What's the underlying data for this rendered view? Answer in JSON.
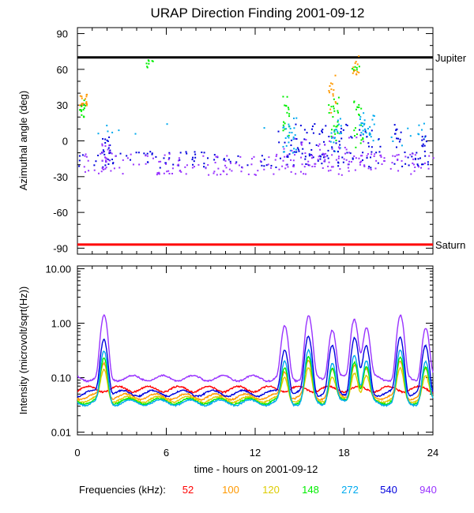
{
  "chart_data": [
    {
      "type": "scatter",
      "title": "URAP Direction Finding  2001-09-12",
      "ylabel": "Azimuthal angle (deg)",
      "xlim": [
        0,
        24
      ],
      "ylim": [
        -95,
        95
      ],
      "yticks": [
        90,
        60,
        30,
        0,
        -30,
        -60,
        -90
      ],
      "yticklabels": [
        "90",
        "60",
        "30",
        "0",
        "-30",
        "-60",
        "-90"
      ],
      "reference_lines": [
        {
          "name": "Jupiter",
          "y": 70,
          "color": "#000000"
        },
        {
          "name": "Saturn",
          "y": -87,
          "color": "#ff0000"
        }
      ],
      "series": [
        {
          "name": "100 kHz",
          "color": "#ff9900",
          "clusters": [
            {
              "x": [
                0.1,
                0.6
              ],
              "y": [
                30,
                40
              ],
              "n": 18
            },
            {
              "x": [
                16.9,
                17.4
              ],
              "y": [
                20,
                60
              ],
              "n": 14
            },
            {
              "x": [
                18.5,
                19.0
              ],
              "y": [
                55,
                72
              ],
              "n": 12
            }
          ]
        },
        {
          "name": "148 kHz",
          "color": "#00ee00",
          "clusters": [
            {
              "x": [
                0.1,
                0.5
              ],
              "y": [
                20,
                35
              ],
              "n": 14
            },
            {
              "x": [
                4.6,
                5.1
              ],
              "y": [
                62,
                70
              ],
              "n": 8
            },
            {
              "x": [
                13.8,
                14.3
              ],
              "y": [
                5,
                40
              ],
              "n": 18
            },
            {
              "x": [
                16.9,
                17.6
              ],
              "y": [
                0,
                40
              ],
              "n": 24
            },
            {
              "x": [
                18.6,
                19.3
              ],
              "y": [
                -5,
                35
              ],
              "n": 20
            },
            {
              "x": [
                18.5,
                19.0
              ],
              "y": [
                60,
                65
              ],
              "n": 6
            }
          ]
        },
        {
          "name": "272 kHz",
          "color": "#00aaee",
          "clusters": [
            {
              "x": [
                13.8,
                14.8
              ],
              "y": [
                -10,
                20
              ],
              "n": 28
            },
            {
              "x": [
                17.0,
                17.8
              ],
              "y": [
                -10,
                20
              ],
              "n": 20
            },
            {
              "x": [
                19.0,
                20.0
              ],
              "y": [
                0,
                25
              ],
              "n": 30
            },
            {
              "x": [
                20.0,
                23.5
              ],
              "y": [
                -5,
                20
              ],
              "n": 12
            },
            {
              "x": [
                1.0,
                13.0
              ],
              "y": [
                0,
                18
              ],
              "n": 8
            }
          ]
        },
        {
          "name": "540 kHz",
          "color": "#0000dd",
          "clusters": [
            {
              "x": [
                0,
                24
              ],
              "y": [
                -22,
                -8
              ],
              "n": 130
            },
            {
              "x": [
                1.6,
                2.2
              ],
              "y": [
                -20,
                5
              ],
              "n": 18
            },
            {
              "x": [
                13.5,
                20.5
              ],
              "y": [
                -15,
                15
              ],
              "n": 70
            },
            {
              "x": [
                21.3,
                21.8
              ],
              "y": [
                -5,
                15
              ],
              "n": 12
            },
            {
              "x": [
                23.2,
                23.6
              ],
              "y": [
                -10,
                5
              ],
              "n": 10
            }
          ]
        },
        {
          "name": "940 kHz",
          "color": "#9933ff",
          "clusters": [
            {
              "x": [
                0,
                24
              ],
              "y": [
                -28,
                -10
              ],
              "n": 190
            },
            {
              "x": [
                1.6,
                2.3
              ],
              "y": [
                -25,
                0
              ],
              "n": 18
            },
            {
              "x": [
                13.7,
                19.5
              ],
              "y": [
                -25,
                5
              ],
              "n": 50
            }
          ]
        }
      ]
    },
    {
      "type": "line",
      "ylabel": "Intensity (microvolt/sqrt(Hz))",
      "xlabel": "time - hours on 2001-09-12",
      "xlim": [
        0,
        24
      ],
      "ylim_log10": [
        -2.05,
        1.05
      ],
      "yticks": [
        0.01,
        0.1,
        1.0,
        10.0
      ],
      "yticklabels": [
        "0.01",
        "0.10",
        "1.00",
        "10.00"
      ],
      "xticks": [
        0,
        6,
        12,
        18,
        24
      ],
      "xticklabels": [
        "0",
        "6",
        "12",
        "18",
        "24"
      ],
      "spike_times": [
        1.8,
        14.0,
        15.6,
        17.2,
        18.7,
        19.5,
        21.8,
        23.5
      ],
      "series": [
        {
          "name": "52",
          "color": "#ff0000",
          "base": 0.062
        },
        {
          "name": "100",
          "color": "#ff9900",
          "base": 0.045
        },
        {
          "name": "120",
          "color": "#ddcc00",
          "base": 0.04
        },
        {
          "name": "148",
          "color": "#00ee00",
          "base": 0.037
        },
        {
          "name": "272",
          "color": "#00aaee",
          "base": 0.035
        },
        {
          "name": "540",
          "color": "#0000dd",
          "base": 0.052
        },
        {
          "name": "940",
          "color": "#9933ff",
          "base": 0.098
        }
      ]
    }
  ],
  "legend": {
    "label": "Frequencies (kHz):",
    "items": [
      {
        "label": "52",
        "color": "#ff0000"
      },
      {
        "label": "100",
        "color": "#ff9900"
      },
      {
        "label": "120",
        "color": "#ddcc00"
      },
      {
        "label": "148",
        "color": "#00ee00"
      },
      {
        "label": "272",
        "color": "#00aaee"
      },
      {
        "label": "540",
        "color": "#0000dd"
      },
      {
        "label": "940",
        "color": "#9933ff"
      }
    ]
  }
}
